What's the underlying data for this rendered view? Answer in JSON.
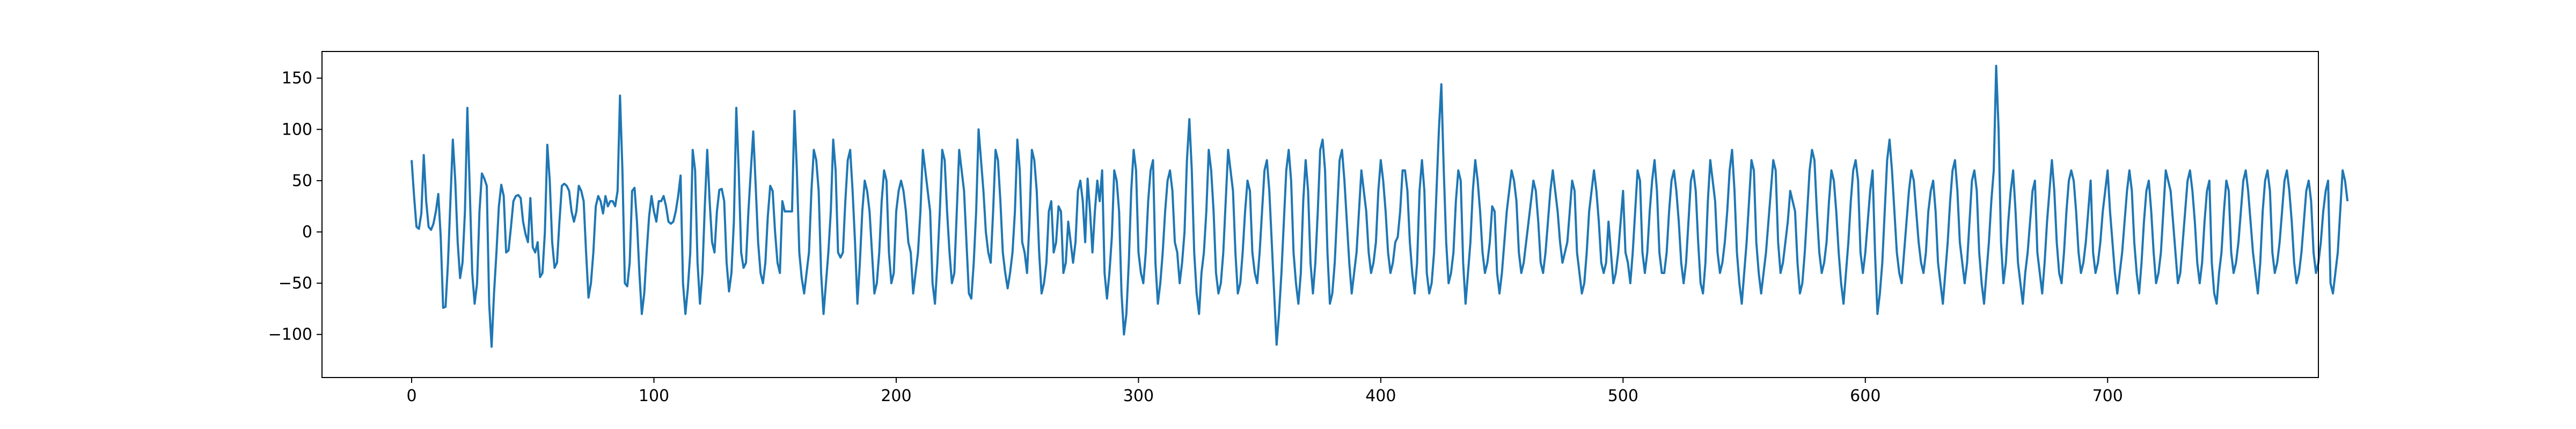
{
  "chart_data": {
    "type": "line",
    "title": "",
    "xlabel": "",
    "ylabel": "",
    "xlim": [
      -37,
      787
    ],
    "ylim": [
      -142,
      176
    ],
    "x_ticks": [
      0,
      100,
      200,
      300,
      400,
      500,
      600,
      700
    ],
    "x_tick_labels": [
      "0",
      "100",
      "200",
      "300",
      "400",
      "500",
      "600",
      "700"
    ],
    "y_ticks": [
      -100,
      -50,
      0,
      50,
      100,
      150
    ],
    "y_tick_labels": [
      "−100",
      "−50",
      "0",
      "50",
      "100",
      "150"
    ],
    "grid": false,
    "legend": "none",
    "line_color": "#1f77b4",
    "series": [
      {
        "x_start": 0,
        "x_step": 1,
        "values": [
          70,
          35,
          5,
          3,
          18,
          75,
          30,
          5,
          2,
          8,
          20,
          37,
          -5,
          -74,
          -73,
          -30,
          30,
          90,
          50,
          -10,
          -45,
          -30,
          20,
          121,
          40,
          -40,
          -70,
          -50,
          20,
          57,
          52,
          45,
          -70,
          -112,
          -60,
          -20,
          25,
          46,
          35,
          -20,
          -18,
          5,
          30,
          35,
          36,
          33,
          10,
          -2,
          -10,
          33,
          -15,
          -20,
          -10,
          -44,
          -40,
          0,
          85,
          50,
          -10,
          -35,
          -30,
          10,
          45,
          47,
          45,
          40,
          20,
          10,
          20,
          45,
          40,
          30,
          -20,
          -64,
          -50,
          -20,
          25,
          35,
          30,
          18,
          35,
          25,
          30,
          30,
          25,
          40,
          133,
          60,
          -50,
          -53,
          -30,
          40,
          43,
          10,
          -40,
          -80,
          -60,
          -20,
          15,
          35,
          20,
          10,
          30,
          30,
          35,
          25,
          10,
          8,
          10,
          20,
          35,
          55,
          -50,
          -80,
          -55,
          -20,
          80,
          60,
          -30,
          -70,
          -40,
          25,
          80,
          30,
          -10,
          -20,
          20,
          41,
          42,
          30,
          -30,
          -58,
          -40,
          10,
          121,
          60,
          -20,
          -35,
          -30,
          20,
          60,
          98,
          45,
          -10,
          -40,
          -50,
          -30,
          15,
          45,
          40,
          0,
          -30,
          -40,
          30,
          20,
          20,
          20,
          20,
          118,
          60,
          -20,
          -45,
          -60,
          -40,
          -20,
          40,
          80,
          70,
          40,
          -40,
          -80,
          -50,
          -20,
          20,
          90,
          60,
          -20,
          -25,
          -20,
          30,
          70,
          80,
          40,
          -10,
          -70,
          -30,
          20,
          50,
          40,
          20,
          -20,
          -60,
          -50,
          -20,
          30,
          60,
          50,
          -20,
          -50,
          -40,
          20,
          40,
          50,
          40,
          20,
          -10,
          -20,
          -60,
          -40,
          -20,
          20,
          80,
          60,
          40,
          20,
          -50,
          -70,
          -30,
          20,
          80,
          70,
          20,
          -20,
          -50,
          -40,
          20,
          80,
          60,
          40,
          -10,
          -60,
          -65,
          -30,
          20,
          100,
          70,
          40,
          0,
          -20,
          -30,
          20,
          80,
          70,
          30,
          -20,
          -40,
          -55,
          -40,
          -20,
          20,
          90,
          60,
          -10,
          -20,
          -40,
          10,
          80,
          70,
          40,
          -20,
          -60,
          -50,
          -30,
          20,
          30,
          -20,
          -10,
          25,
          20,
          -40,
          -30,
          10,
          -10,
          -30,
          -10,
          40,
          50,
          30,
          -10,
          52,
          20,
          -20,
          20,
          50,
          30,
          60,
          -40,
          -65,
          -40,
          -5,
          60,
          50,
          20,
          -60,
          -100,
          -80,
          -30,
          40,
          80,
          60,
          -20,
          -40,
          -50,
          -20,
          30,
          60,
          70,
          -30,
          -70,
          -50,
          -20,
          20,
          50,
          60,
          40,
          -10,
          -20,
          -50,
          -30,
          0,
          70,
          110,
          60,
          -20,
          -60,
          -80,
          -40,
          -20,
          20,
          80,
          60,
          20,
          -40,
          -60,
          -50,
          -20,
          30,
          80,
          60,
          40,
          -20,
          -60,
          -50,
          -20,
          20,
          50,
          40,
          -20,
          -40,
          -50,
          -20,
          20,
          60,
          70,
          40,
          -10,
          -60,
          -110,
          -80,
          -40,
          10,
          60,
          80,
          50,
          -20,
          -50,
          -70,
          -40,
          30,
          70,
          40,
          -30,
          -60,
          -30,
          20,
          80,
          90,
          60,
          -20,
          -70,
          -60,
          -30,
          20,
          70,
          80,
          50,
          10,
          -30,
          -60,
          -40,
          -20,
          20,
          60,
          40,
          20,
          -20,
          -40,
          -30,
          -10,
          40,
          70,
          50,
          20,
          -20,
          -40,
          -30,
          -10,
          -5,
          20,
          60,
          60,
          40,
          -10,
          -40,
          -60,
          -30,
          40,
          70,
          40,
          -40,
          -60,
          -50,
          -20,
          40,
          100,
          144,
          60,
          -10,
          -50,
          -40,
          -20,
          30,
          60,
          50,
          -30,
          -70,
          -40,
          -10,
          40,
          70,
          50,
          20,
          -20,
          -40,
          -30,
          -10,
          25,
          20,
          -40,
          -60,
          -40,
          -10,
          20,
          40,
          60,
          50,
          30,
          -20,
          -40,
          -30,
          -10,
          10,
          30,
          50,
          40,
          10,
          -30,
          -40,
          -20,
          10,
          40,
          60,
          40,
          20,
          -10,
          -30,
          -20,
          -10,
          20,
          50,
          40,
          -20,
          -40,
          -60,
          -50,
          -20,
          20,
          40,
          60,
          40,
          10,
          -30,
          -40,
          -30,
          10,
          -20,
          -50,
          -40,
          -20,
          10,
          40,
          -20,
          -30,
          -50,
          -20,
          20,
          60,
          50,
          -20,
          -40,
          -20,
          20,
          50,
          70,
          40,
          -20,
          -40,
          -40,
          -20,
          20,
          50,
          60,
          40,
          10,
          -30,
          -50,
          -30,
          10,
          50,
          60,
          40,
          -10,
          -50,
          -60,
          -30,
          30,
          70,
          50,
          30,
          -20,
          -40,
          -30,
          -10,
          20,
          60,
          80,
          40,
          -20,
          -50,
          -70,
          -40,
          -10,
          30,
          70,
          60,
          -10,
          -40,
          -60,
          -40,
          -20,
          10,
          40,
          70,
          60,
          -10,
          -40,
          -30,
          -10,
          10,
          40,
          30,
          20,
          -30,
          -60,
          -50,
          -20,
          20,
          60,
          80,
          70,
          20,
          -20,
          -40,
          -30,
          -10,
          30,
          60,
          50,
          20,
          -20,
          -50,
          -70,
          -40,
          -10,
          30,
          60,
          70,
          50,
          -20,
          -40,
          -20,
          10,
          40,
          60,
          -20,
          -80,
          -60,
          -30,
          20,
          70,
          90,
          60,
          20,
          -20,
          -40,
          -50,
          -20,
          10,
          40,
          60,
          50,
          20,
          -10,
          -30,
          -40,
          -20,
          20,
          40,
          50,
          20,
          -30,
          -50,
          -70,
          -40,
          -10,
          30,
          60,
          70,
          40,
          -10,
          -30,
          -50,
          -30,
          10,
          50,
          60,
          40,
          -20,
          -50,
          -70,
          -40,
          -10,
          30,
          60,
          162,
          100,
          -10,
          -50,
          -30,
          10,
          40,
          60,
          20,
          -30,
          -50,
          -70,
          -40,
          -20,
          10,
          40,
          50,
          -20,
          -40,
          -60,
          -30,
          10,
          40,
          70,
          40,
          -10,
          -40,
          -50,
          -20,
          20,
          50,
          60,
          50,
          20,
          -20,
          -40,
          -30,
          -10,
          20,
          50,
          -20,
          -40,
          -30,
          -10,
          20,
          40,
          60,
          20,
          -10,
          -40,
          -60,
          -40,
          -20,
          10,
          40,
          60,
          40,
          -10,
          -40,
          -60,
          -30,
          10,
          40,
          50,
          20,
          -20,
          -50,
          -40,
          -20,
          20,
          60,
          50,
          40,
          10,
          -20,
          -50,
          -40,
          -10,
          20,
          50,
          60,
          40,
          10,
          -30,
          -50,
          -30,
          10,
          40,
          50,
          -30,
          -60,
          -70,
          -40,
          -20,
          20,
          50,
          40,
          -20,
          -40,
          -30,
          -10,
          20,
          50,
          60,
          40,
          10,
          -20,
          -40,
          -60,
          -30,
          20,
          50,
          60,
          40,
          -20,
          -40,
          -30,
          -10,
          20,
          50,
          60,
          40,
          10,
          -30,
          -50,
          -40,
          -20,
          10,
          40,
          50,
          30,
          -20,
          -40,
          -30,
          -10,
          20,
          40,
          50,
          -50,
          -60,
          -40,
          -20,
          20,
          60,
          50,
          30
        ]
      }
    ]
  }
}
